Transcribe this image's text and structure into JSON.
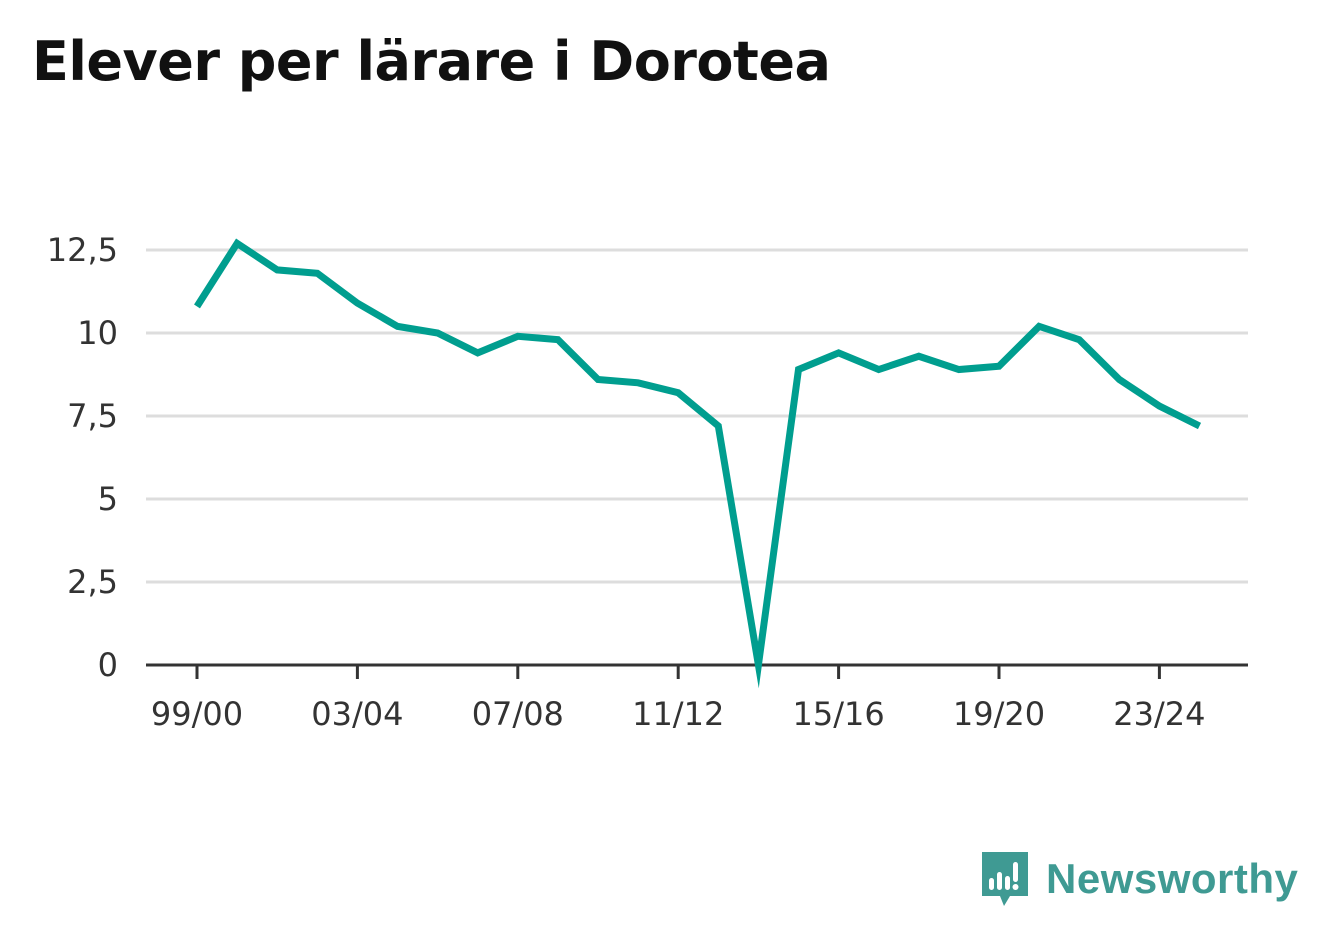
{
  "title": "Elever per lärare i Dorotea",
  "brand": {
    "name": "Newsworthy",
    "icon": "newsworthy-logo-icon",
    "color": "#3f9a93"
  },
  "colors": {
    "line": "#009e8f",
    "grid": "#dddddd",
    "axis": "#333333"
  },
  "chart_data": {
    "type": "line",
    "title": "Elever per lärare i Dorotea",
    "xlabel": "",
    "ylabel": "",
    "x": [
      "99/00",
      "00/01",
      "01/02",
      "02/03",
      "03/04",
      "04/05",
      "05/06",
      "06/07",
      "07/08",
      "08/09",
      "09/10",
      "10/11",
      "11/12",
      "12/13",
      "13/14",
      "14/15",
      "15/16",
      "16/17",
      "17/18",
      "18/19",
      "19/20",
      "20/21",
      "21/22",
      "22/23",
      "23/24",
      "24/25"
    ],
    "x_tick_labels": [
      "99/00",
      "03/04",
      "07/08",
      "11/12",
      "15/16",
      "19/20",
      "23/24"
    ],
    "y_ticks": [
      0,
      2.5,
      5,
      7.5,
      10,
      12.5
    ],
    "y_tick_labels": [
      "0",
      "2,5",
      "5",
      "7,5",
      "10",
      "12,5"
    ],
    "ylim": [
      0,
      12.5
    ],
    "grid": true,
    "series": [
      {
        "values": [
          10.8,
          12.7,
          11.9,
          11.8,
          10.9,
          10.2,
          10.0,
          9.4,
          9.9,
          9.8,
          8.6,
          8.5,
          8.2,
          7.2,
          0.0,
          8.9,
          9.4,
          8.9,
          9.3,
          8.9,
          9.0,
          10.2,
          9.8,
          8.6,
          7.8,
          7.2
        ]
      }
    ]
  }
}
